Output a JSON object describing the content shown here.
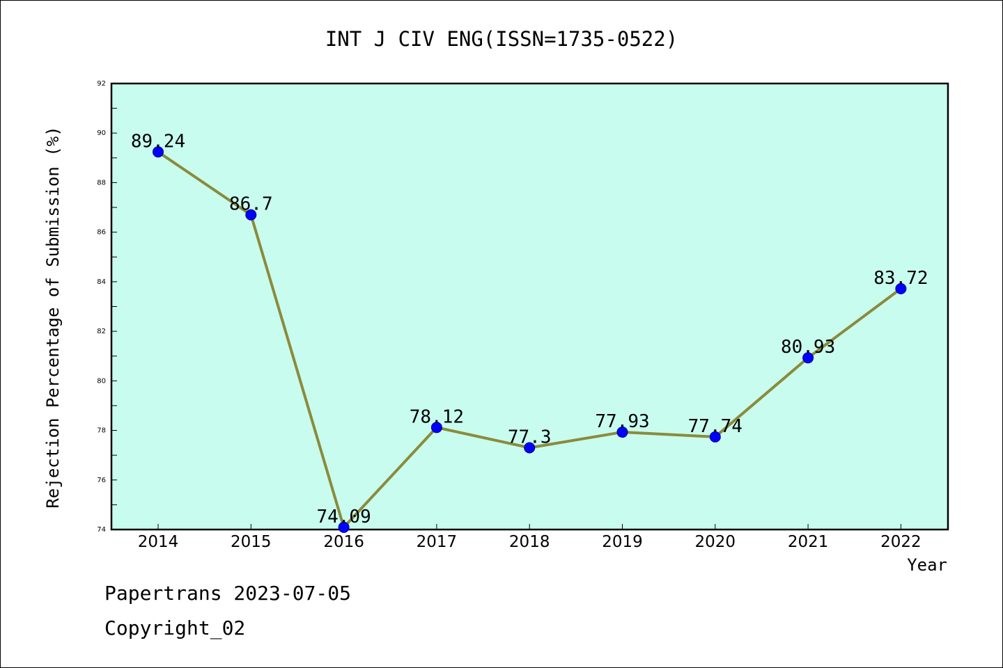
{
  "chart_data": {
    "type": "line",
    "title": "INT J CIV ENG(ISSN=1735-0522)",
    "xlabel": "Year",
    "ylabel": "Rejection Percentage of Submission (%)",
    "categories": [
      "2014",
      "2015",
      "2016",
      "2017",
      "2018",
      "2019",
      "2020",
      "2021",
      "2022"
    ],
    "values": [
      89.24,
      86.7,
      74.09,
      78.12,
      77.3,
      77.93,
      77.74,
      80.93,
      83.72
    ],
    "data_labels": [
      "89.24",
      "86.7",
      "74.09",
      "78.12",
      "77.3",
      "77.93",
      "77.74",
      "80.93",
      "83.72"
    ],
    "ylim": [
      74,
      92
    ],
    "yticks": [
      "74",
      "76",
      "78",
      "80",
      "82",
      "84",
      "86",
      "88",
      "90",
      "92"
    ],
    "grid": false,
    "colors": {
      "plot_background": "#c8fcee",
      "line": "#8b8b3c",
      "marker": "#0000ff"
    }
  },
  "footer": {
    "line1": "Papertrans 2023-07-05",
    "line2": "Copyright_02"
  }
}
